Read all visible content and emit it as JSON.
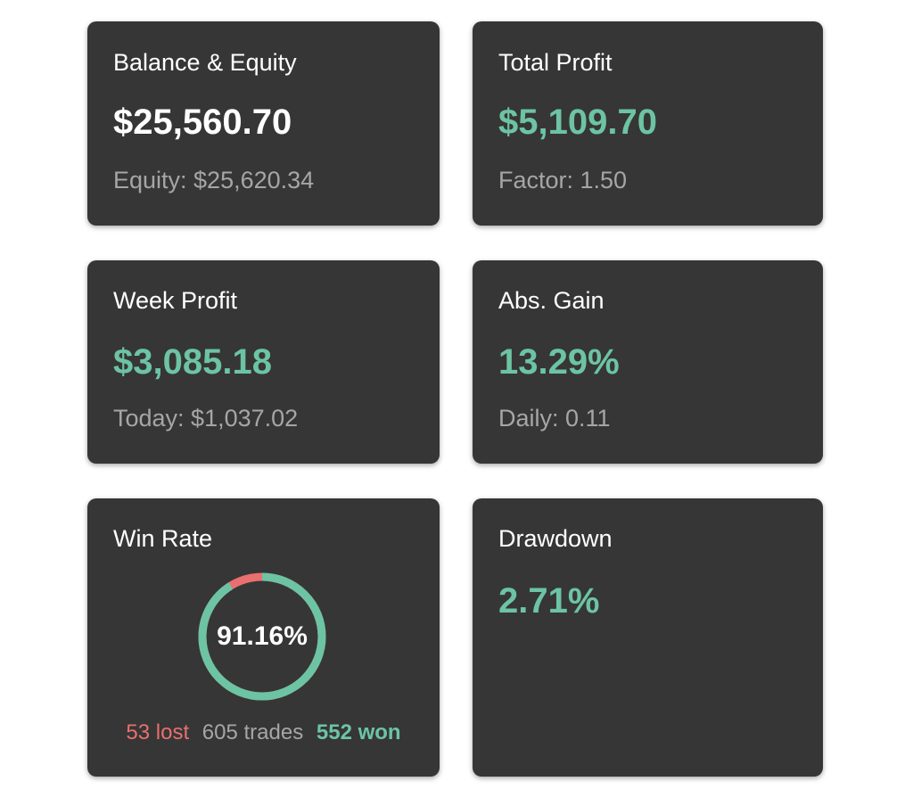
{
  "colors": {
    "card_background": "#363636",
    "positive": "#6cc4a4",
    "negative": "#e8706f",
    "muted": "#a6a6a6"
  },
  "cards": {
    "balance": {
      "title": "Balance & Equity",
      "value": "$25,560.70",
      "sub": "Equity: $25,620.34"
    },
    "total_profit": {
      "title": "Total Profit",
      "value": "$5,109.70",
      "sub": "Factor: 1.50"
    },
    "week_profit": {
      "title": "Week Profit",
      "value": "$3,085.18",
      "sub": "Today: $1,037.02"
    },
    "abs_gain": {
      "title": "Abs. Gain",
      "value": "13.29%",
      "sub": "Daily: 0.11"
    },
    "win_rate": {
      "title": "Win Rate",
      "percent_label": "91.16%",
      "win_fraction": 0.9116,
      "lost": "53 lost",
      "trades": "605 trades",
      "won": "552 won"
    },
    "drawdown": {
      "title": "Drawdown",
      "value": "2.71%"
    }
  }
}
